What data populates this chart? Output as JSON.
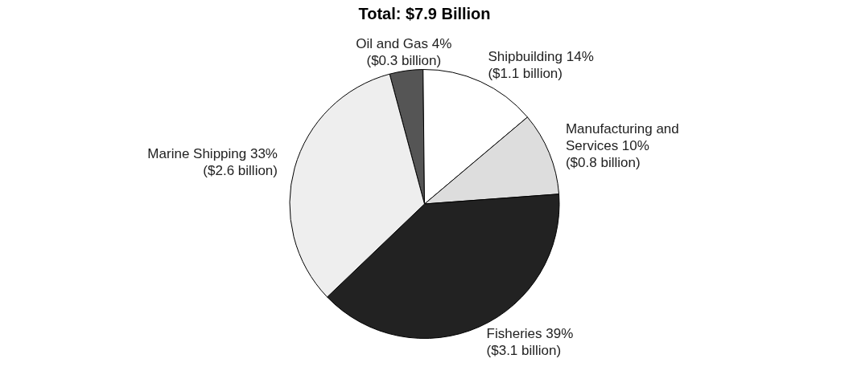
{
  "chart_data": {
    "type": "pie",
    "title": "Total: $7.9 Billion",
    "categories": [
      "Oil and Gas",
      "Shipbuilding",
      "Manufacturing and Services",
      "Fisheries",
      "Marine Shipping"
    ],
    "values": [
      4,
      14,
      10,
      39,
      33
    ],
    "value_labels": [
      "4% ($0.3 billion)",
      "14% ($1.1 billion)",
      "10% ($0.8 billion)",
      "39% ($3.1 billion)",
      "33% ($2.6 billion)"
    ],
    "colors": [
      "#555555",
      "#ffffff",
      "#dddddd",
      "#222222",
      "#eeeeee"
    ],
    "legend": false
  }
}
